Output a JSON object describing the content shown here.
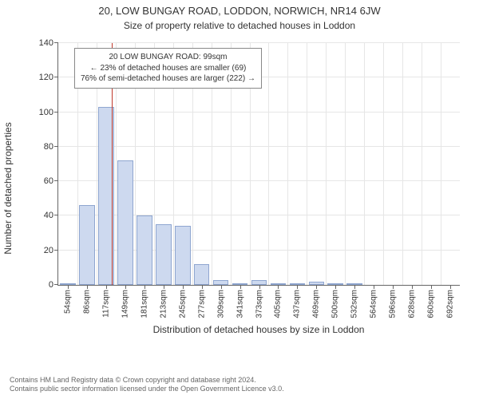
{
  "title": "20, LOW BUNGAY ROAD, LODDON, NORWICH, NR14 6JW",
  "subtitle": "Size of property relative to detached houses in Loddon",
  "chart": {
    "type": "histogram",
    "ylabel": "Number of detached properties",
    "xlabel": "Distribution of detached houses by size in Loddon",
    "ylim": [
      0,
      140
    ],
    "ytick_step": 20,
    "background_color": "#ffffff",
    "grid_color": "#e6e6e6",
    "axis_color": "#666666",
    "bar_fill": "#cdd9ef",
    "bar_border": "#8fa6d0",
    "ref_line_color": "#c0392b",
    "ref_value_bin_index": 2.8,
    "categories": [
      "54sqm",
      "86sqm",
      "117sqm",
      "149sqm",
      "181sqm",
      "213sqm",
      "245sqm",
      "277sqm",
      "309sqm",
      "341sqm",
      "373sqm",
      "405sqm",
      "437sqm",
      "469sqm",
      "500sqm",
      "532sqm",
      "564sqm",
      "596sqm",
      "628sqm",
      "660sqm",
      "692sqm"
    ],
    "values": [
      1,
      46,
      103,
      72,
      40,
      35,
      34,
      12,
      3,
      1,
      3,
      1,
      1,
      2,
      1,
      1,
      0,
      0,
      0,
      0,
      0
    ],
    "bar_width_ratio": 0.82,
    "label_fontsize": 12,
    "tick_fontsize": 11,
    "xtick_fontsize": 10
  },
  "annotation": {
    "line1": "20 LOW BUNGAY ROAD: 99sqm",
    "line2": "← 23% of detached houses are smaller (69)",
    "line3": "76% of semi-detached houses are larger (222) →",
    "border_color": "#888888",
    "bg_color": "#ffffff",
    "fontsize": 10
  },
  "footer": {
    "line1": "Contains HM Land Registry data © Crown copyright and database right 2024.",
    "line2": "Contains public sector information licensed under the Open Government Licence v3.0."
  }
}
